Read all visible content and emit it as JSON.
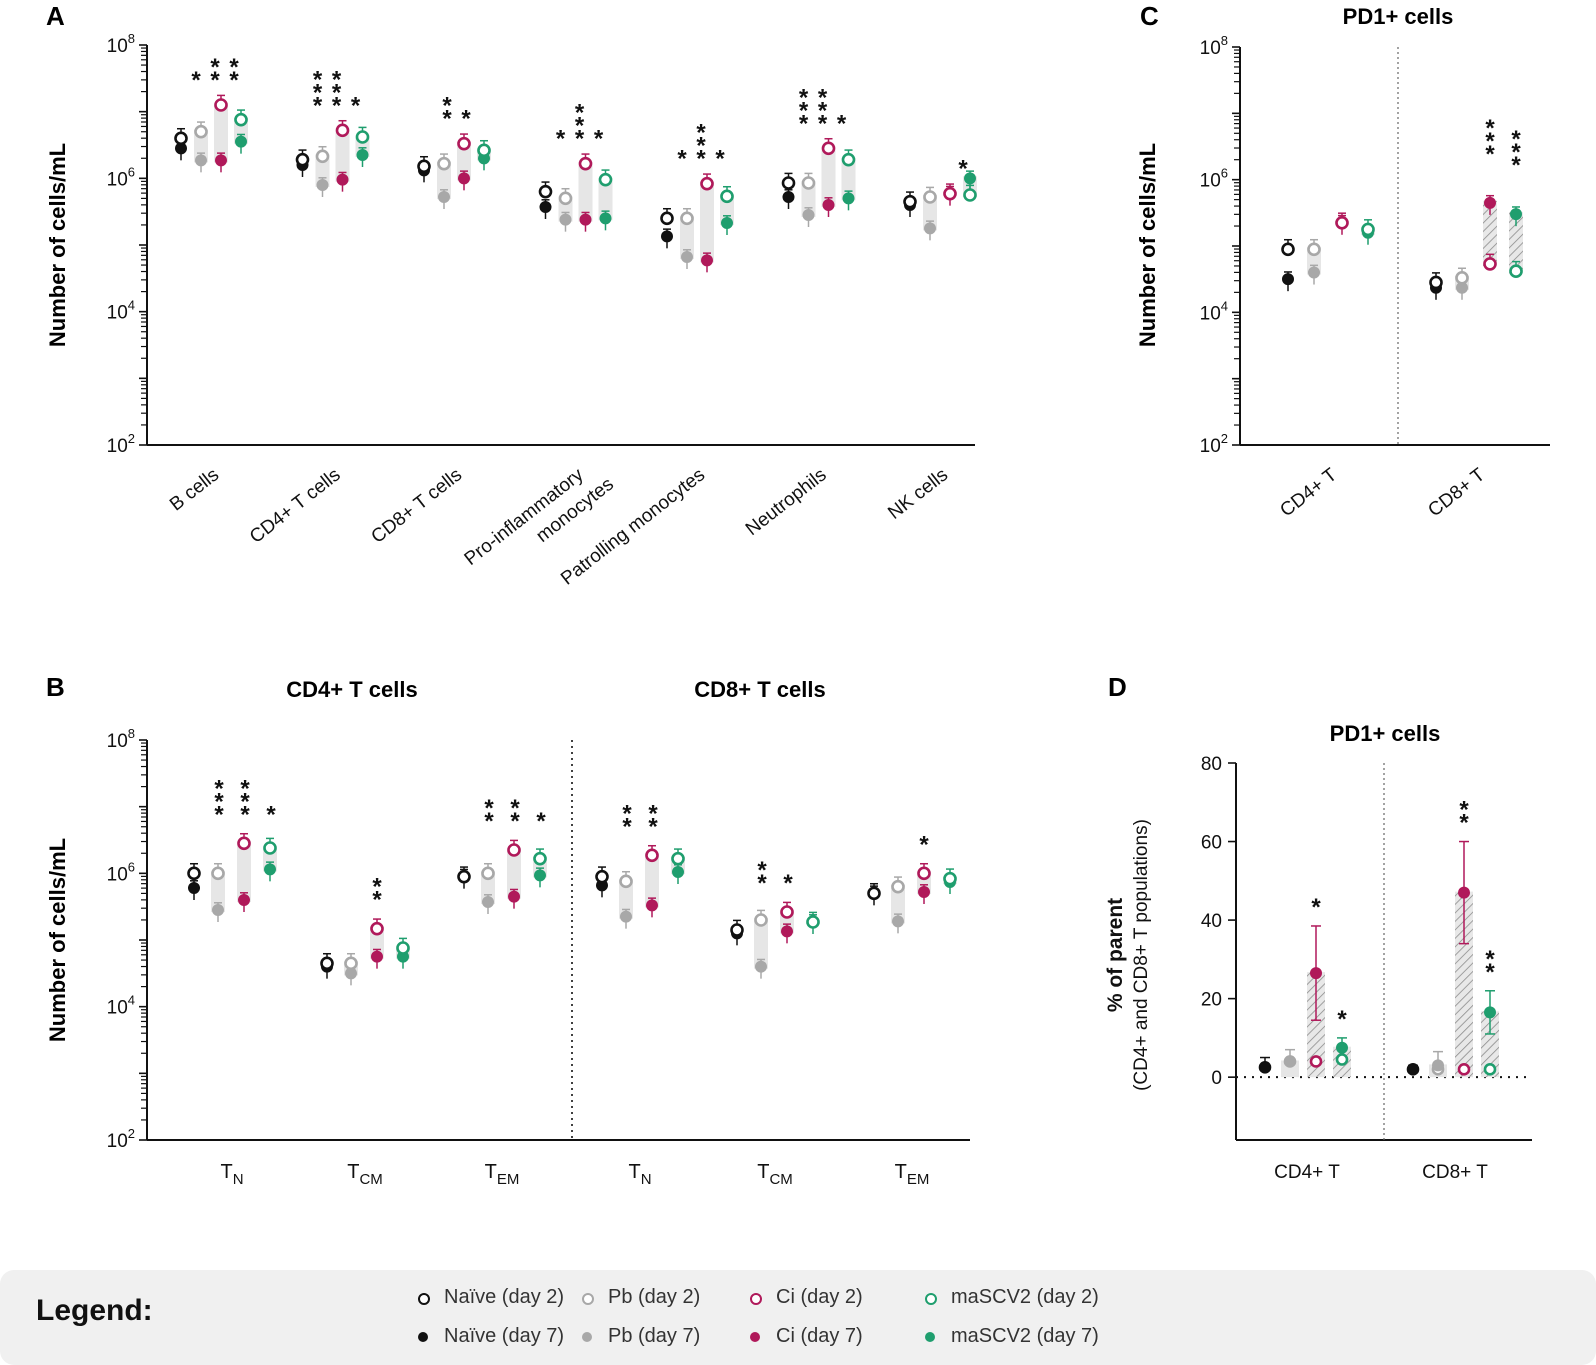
{
  "colors": {
    "naive": "#111111",
    "pb": "#a8a8a8",
    "ci": "#b0195a",
    "masc": "#1f9e6e",
    "band": "#e6e6e6"
  },
  "legend": {
    "title": "Legend:",
    "items": [
      {
        "label": "Naïve (day 2)",
        "group": "naive",
        "day": 2
      },
      {
        "label": "Pb (day 2)",
        "group": "pb",
        "day": 2
      },
      {
        "label": "Ci (day 2)",
        "group": "ci",
        "day": 2
      },
      {
        "label": "maSCV2 (day 2)",
        "group": "masc",
        "day": 2
      },
      {
        "label": "Naïve (day 7)",
        "group": "naive",
        "day": 7
      },
      {
        "label": "Pb (day 7)",
        "group": "pb",
        "day": 7
      },
      {
        "label": "Ci (day 7)",
        "group": "ci",
        "day": 7
      },
      {
        "label": "maSCV2 (day 7)",
        "group": "masc",
        "day": 7
      }
    ]
  },
  "chart_data": [
    {
      "panel": "A",
      "type": "scatter",
      "scale": "log10",
      "ylabel": "Number of cells/mL",
      "yticks": [
        {
          "exp": 8,
          "label": "10",
          "sup": "8"
        },
        {
          "exp": 6,
          "label": "10",
          "sup": "6"
        },
        {
          "exp": 4,
          "label": "10",
          "sup": "4"
        },
        {
          "exp": 2,
          "label": "10",
          "sup": "2"
        }
      ],
      "ylim": [
        2,
        8
      ],
      "categories": [
        {
          "label": "B cells",
          "sig": [
            "*",
            "**",
            "**"
          ],
          "values": {
            "naive": [
              6.6,
              6.45
            ],
            "pb": [
              6.7,
              6.27
            ],
            "ci": [
              7.1,
              6.27
            ],
            "masc": [
              6.88,
              6.55
            ]
          }
        },
        {
          "label": "CD4+ T cells",
          "sig": [
            "***",
            "***",
            "*"
          ],
          "values": {
            "naive": [
              6.28,
              6.2
            ],
            "pb": [
              6.33,
              5.9
            ],
            "ci": [
              6.72,
              5.98
            ],
            "masc": [
              6.62,
              6.35
            ]
          }
        },
        {
          "label": "CD8+ T cells",
          "sig": [
            "**",
            "*"
          ],
          "values": {
            "naive": [
              6.18,
              6.12
            ],
            "pb": [
              6.22,
              5.72
            ],
            "ci": [
              6.52,
              6.0
            ],
            "masc": [
              6.42,
              6.3
            ]
          }
        },
        {
          "label": "Pro-inflammatory monocytes",
          "label_lines": [
            "Pro-inflammatory",
            "monocytes"
          ],
          "sig": [
            "*",
            "***",
            "*"
          ],
          "values": {
            "naive": [
              5.8,
              5.57
            ],
            "pb": [
              5.7,
              5.38
            ],
            "ci": [
              6.22,
              5.38
            ],
            "masc": [
              5.98,
              5.4
            ]
          }
        },
        {
          "label": "Patrolling monocytes",
          "sig": [
            "*",
            "***",
            "*"
          ],
          "values": {
            "naive": [
              5.4,
              5.13
            ],
            "pb": [
              5.4,
              4.82
            ],
            "ci": [
              5.92,
              4.77
            ],
            "masc": [
              5.73,
              5.33
            ]
          }
        },
        {
          "label": "Neutrophils",
          "sig": [
            "***",
            "***",
            "*"
          ],
          "values": {
            "naive": [
              5.93,
              5.72
            ],
            "pb": [
              5.93,
              5.45
            ],
            "ci": [
              6.45,
              5.6
            ],
            "masc": [
              6.28,
              5.7
            ]
          }
        },
        {
          "label": "NK cells",
          "sig": [
            "*"
          ],
          "values": {
            "naive": [
              5.65,
              5.6
            ],
            "pb": [
              5.72,
              5.25
            ],
            "ci": [
              5.77,
              5.77
            ],
            "masc": [
              5.75,
              6.0
            ]
          }
        }
      ]
    },
    {
      "panel": "B",
      "type": "scatter",
      "scale": "log10",
      "ylabel": "Number of cells/mL",
      "yticks": [
        {
          "exp": 8,
          "label": "10",
          "sup": "8"
        },
        {
          "exp": 6,
          "label": "10",
          "sup": "6"
        },
        {
          "exp": 4,
          "label": "10",
          "sup": "4"
        },
        {
          "exp": 2,
          "label": "10",
          "sup": "2"
        }
      ],
      "ylim": [
        2,
        8
      ],
      "groups": [
        {
          "title": "CD4+ T cells",
          "categories": [
            {
              "label": "T",
              "sub": "N",
              "sig": [
                "***",
                "***",
                "*"
              ],
              "values": {
                "naive": [
                  6.0,
                  5.78
                ],
                "pb": [
                  6.0,
                  5.45
                ],
                "ci": [
                  6.45,
                  5.6
                ],
                "masc": [
                  6.38,
                  6.06
                ]
              }
            },
            {
              "label": "T",
              "sub": "CM",
              "sig": [
                "**"
              ],
              "values": {
                "naive": [
                  4.65,
                  4.6
                ],
                "pb": [
                  4.65,
                  4.5
                ],
                "ci": [
                  5.17,
                  4.75
                ],
                "masc": [
                  4.88,
                  4.75
                ]
              }
            },
            {
              "label": "T",
              "sub": "EM",
              "sig": [
                "**",
                "**",
                "*"
              ],
              "values": {
                "naive": [
                  5.95,
                  5.95
                ],
                "pb": [
                  6.0,
                  5.57
                ],
                "ci": [
                  6.35,
                  5.65
                ],
                "masc": [
                  6.22,
                  5.97
                ]
              }
            }
          ]
        },
        {
          "title": "CD8+ T cells",
          "categories": [
            {
              "label": "T",
              "sub": "N",
              "sig": [
                "**",
                "**"
              ],
              "values": {
                "naive": [
                  5.95,
                  5.82
                ],
                "pb": [
                  5.88,
                  5.35
                ],
                "ci": [
                  6.27,
                  5.52
                ],
                "masc": [
                  6.22,
                  6.02
                ]
              }
            },
            {
              "label": "T",
              "sub": "CM",
              "sig": [
                "**",
                "*"
              ],
              "values": {
                "naive": [
                  5.15,
                  5.1
                ],
                "pb": [
                  5.3,
                  4.6
                ],
                "ci": [
                  5.42,
                  5.13
                ],
                "masc": [
                  5.27,
                  5.27
                ]
              }
            },
            {
              "label": "T",
              "sub": "EM",
              "sig": [
                "*"
              ],
              "values": {
                "naive": [
                  5.7,
                  5.7
                ],
                "pb": [
                  5.8,
                  5.28
                ],
                "ci": [
                  6.0,
                  5.72
                ],
                "masc": [
                  5.92,
                  5.87
                ]
              }
            }
          ]
        }
      ]
    },
    {
      "panel": "C",
      "type": "scatter",
      "scale": "log10",
      "title": "PD1+ cells",
      "ylabel": "Number of cells/mL",
      "yticks": [
        {
          "exp": 8,
          "label": "10",
          "sup": "8"
        },
        {
          "exp": 6,
          "label": "10",
          "sup": "6"
        },
        {
          "exp": 4,
          "label": "10",
          "sup": "4"
        },
        {
          "exp": 2,
          "label": "10",
          "sup": "2"
        }
      ],
      "ylim": [
        2,
        8
      ],
      "categories": [
        {
          "label": "CD4+ T",
          "sig": [],
          "values": {
            "naive": [
              4.95,
              4.5
            ],
            "pb": [
              4.95,
              4.6
            ],
            "ci": [
              5.35,
              5.35
            ],
            "masc": [
              5.25,
              5.2
            ]
          }
        },
        {
          "label": "CD8+ T",
          "sig": [
            "***",
            "***"
          ],
          "values": {
            "naive": [
              4.45,
              4.37
            ],
            "pb": [
              4.52,
              4.37
            ],
            "ci": [
              4.73,
              5.65
            ],
            "masc": [
              4.62,
              5.48
            ]
          }
        }
      ]
    },
    {
      "panel": "D",
      "type": "scatter",
      "scale": "linear",
      "title": "PD1+ cells",
      "ylabel": "% of parent",
      "ylabel2": "(CD4+ and CD8+ T populations)",
      "yticks": [
        {
          "value": 80,
          "label": "80"
        },
        {
          "value": 60,
          "label": "60"
        },
        {
          "value": 40,
          "label": "40"
        },
        {
          "value": 20,
          "label": "20"
        },
        {
          "value": 0,
          "label": "0"
        }
      ],
      "ylim": [
        -16,
        80
      ],
      "categories": [
        {
          "label": "CD4+ T",
          "sig": [
            "*",
            "*"
          ],
          "values": {
            "naive": [
              2.5,
              2.5
            ],
            "pb": [
              4,
              4
            ],
            "ci": [
              4,
              26.5
            ],
            "masc": [
              4.5,
              7.5
            ]
          }
        },
        {
          "label": "CD8+ T",
          "sig": [
            "**",
            "**"
          ],
          "values": {
            "naive": [
              2,
              2
            ],
            "pb": [
              2,
              3
            ],
            "ci": [
              2,
              47
            ],
            "masc": [
              2,
              16.5
            ]
          }
        }
      ]
    }
  ]
}
